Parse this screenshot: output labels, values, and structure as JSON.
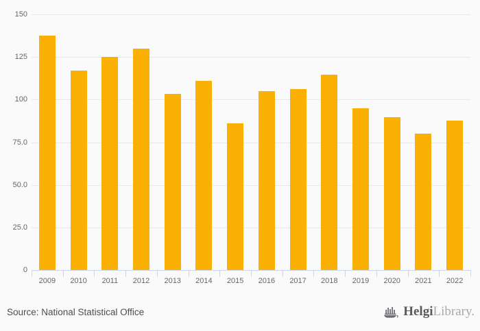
{
  "chart_data": {
    "type": "bar",
    "categories": [
      "2009",
      "2010",
      "2011",
      "2012",
      "2013",
      "2014",
      "2015",
      "2016",
      "2017",
      "2018",
      "2019",
      "2020",
      "2021",
      "2022"
    ],
    "values": [
      137.5,
      117,
      125,
      130,
      103.5,
      111,
      86,
      105,
      106,
      114.5,
      95,
      89.5,
      80,
      87.5
    ],
    "xlabel": "",
    "ylabel": "",
    "ylim": [
      0,
      150
    ],
    "yticks": [
      0,
      25,
      50,
      75,
      100,
      125,
      150
    ],
    "ytick_labels": [
      "0",
      "25.0",
      "50.0",
      "75.0",
      "100",
      "125",
      "150"
    ],
    "grid": true,
    "legend": false,
    "bar_color": "#FAB005"
  },
  "colors": {
    "background": "#FAFAFA",
    "bar": "#FAB005",
    "gridline": "#E7E7E7",
    "axis_line": "#CCD6EB",
    "axis_label": "#666666",
    "source_text": "#4D4D4D",
    "logo_primary": "#58595B",
    "logo_secondary": "#A7A9AC"
  },
  "footer": {
    "source": "Source: National Statistical Office",
    "logo": {
      "brand_primary": "Helgi",
      "brand_secondary": "Library."
    }
  }
}
